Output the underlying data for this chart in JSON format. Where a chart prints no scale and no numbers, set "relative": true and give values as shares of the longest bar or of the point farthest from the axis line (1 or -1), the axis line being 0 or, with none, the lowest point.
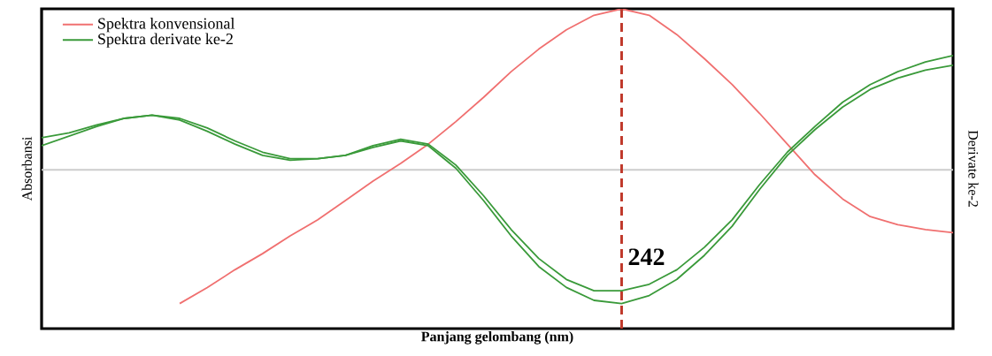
{
  "chart_data": {
    "type": "line",
    "relative": true,
    "xlabel": "Panjang gelombang (nm)",
    "ylabel": "Absorbansi",
    "y2label": "Derivate ke-2",
    "categories": [
      null,
      null,
      null,
      null,
      null,
      null,
      null,
      null,
      null,
      null,
      null,
      null,
      null,
      null,
      null,
      null,
      null,
      null,
      null,
      null,
      null,
      null,
      null,
      null,
      null,
      null,
      null,
      null,
      null,
      null,
      null,
      null,
      null,
      null
    ],
    "series": [
      {
        "name": "Spektra konvensional",
        "color": "#f07070",
        "values": [
          null,
          null,
          null,
          null,
          null,
          -0.83,
          -0.73,
          -0.62,
          -0.52,
          -0.41,
          -0.31,
          -0.19,
          -0.07,
          0.04,
          0.16,
          0.3,
          0.45,
          0.61,
          0.75,
          0.87,
          0.96,
          1,
          0.96,
          0.84,
          0.69,
          0.53,
          0.35,
          0.16,
          -0.03,
          -0.18,
          -0.29,
          -0.34,
          -0.37,
          -0.39
        ]
      },
      {
        "name": "Spektra derivate ke-2",
        "color": "#3a9a3a",
        "values": [
          0.15,
          0.21,
          0.27,
          0.32,
          0.34,
          0.32,
          0.26,
          0.18,
          0.11,
          0.07,
          0.07,
          0.09,
          0.15,
          0.19,
          0.16,
          0.03,
          -0.16,
          -0.37,
          -0.55,
          -0.68,
          -0.75,
          -0.75,
          -0.71,
          -0.62,
          -0.48,
          -0.31,
          -0.09,
          0.11,
          0.27,
          0.42,
          0.53,
          0.61,
          0.67,
          0.71
        ]
      },
      {
        "color": "#3a9a3a",
        "values": [
          0.2,
          0.23,
          0.28,
          0.32,
          0.34,
          0.31,
          0.24,
          0.16,
          0.09,
          0.06,
          0.07,
          0.09,
          0.14,
          0.18,
          0.15,
          0.01,
          -0.19,
          -0.41,
          -0.6,
          -0.73,
          -0.81,
          -0.83,
          -0.78,
          -0.68,
          -0.53,
          -0.35,
          -0.12,
          0.09,
          0.25,
          0.39,
          0.5,
          0.57,
          0.62,
          0.65
        ]
      }
    ],
    "annotations": [
      "242"
    ],
    "legend": "top left",
    "tick_labels": false,
    "marker": "none",
    "line_style": "solid"
  }
}
